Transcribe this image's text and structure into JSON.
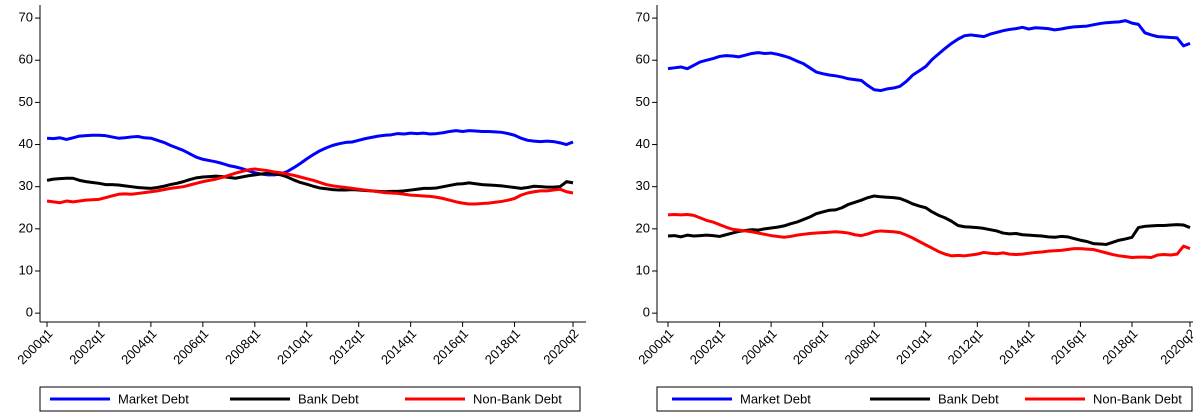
{
  "chart_data": [
    {
      "type": "line",
      "ylim": [
        -2.1,
        73.1
      ],
      "yticks": [
        0,
        10,
        20,
        30,
        40,
        50,
        60,
        70
      ],
      "legend": "bottom",
      "categories": [
        "2000q1",
        null,
        null,
        null,
        null,
        null,
        null,
        null,
        "2002q1",
        null,
        null,
        null,
        null,
        null,
        null,
        null,
        "2004q1",
        null,
        null,
        null,
        null,
        null,
        null,
        null,
        "2006q1",
        null,
        null,
        null,
        null,
        null,
        null,
        null,
        "2008q1",
        null,
        null,
        null,
        null,
        null,
        null,
        null,
        "2010q1",
        null,
        null,
        null,
        null,
        null,
        null,
        null,
        "2012q1",
        null,
        null,
        null,
        null,
        null,
        null,
        null,
        "2014q1",
        null,
        null,
        null,
        null,
        null,
        null,
        null,
        "2016q1",
        null,
        null,
        null,
        null,
        null,
        null,
        null,
        "2018q1",
        null,
        null,
        null,
        null,
        null,
        null,
        null,
        null,
        "2020q2"
      ],
      "series": [
        {
          "name": "Market Debt",
          "color": "#0000ff",
          "values": [
            41.5,
            41.4,
            41.6,
            41.2,
            41.6,
            42.0,
            42.1,
            42.2,
            42.2,
            42.1,
            41.8,
            41.5,
            41.6,
            41.8,
            41.9,
            41.6,
            41.5,
            41.0,
            40.5,
            39.8,
            39.2,
            38.6,
            37.8,
            37.0,
            36.5,
            36.2,
            35.9,
            35.5,
            35.0,
            34.7,
            34.3,
            33.8,
            33.3,
            33.0,
            32.8,
            32.8,
            33.0,
            33.6,
            34.5,
            35.5,
            36.6,
            37.6,
            38.5,
            39.2,
            39.8,
            40.2,
            40.5,
            40.6,
            41.0,
            41.4,
            41.7,
            42.0,
            42.2,
            42.3,
            42.6,
            42.5,
            42.7,
            42.6,
            42.7,
            42.5,
            42.6,
            42.8,
            43.1,
            43.3,
            43.1,
            43.3,
            43.2,
            43.1,
            43.1,
            43.0,
            42.9,
            42.6,
            42.2,
            41.5,
            41.0,
            40.8,
            40.7,
            40.8,
            40.7,
            40.4,
            40.0,
            40.6
          ]
        },
        {
          "name": "Bank Debt",
          "color": "#000000",
          "values": [
            31.5,
            31.8,
            31.9,
            32.0,
            32.0,
            31.5,
            31.2,
            31.0,
            30.8,
            30.5,
            30.5,
            30.4,
            30.2,
            30.0,
            29.8,
            29.7,
            29.6,
            29.8,
            30.1,
            30.5,
            30.8,
            31.2,
            31.7,
            32.1,
            32.3,
            32.4,
            32.5,
            32.4,
            32.2,
            32.0,
            32.3,
            32.6,
            32.8,
            33.0,
            33.2,
            33.1,
            32.8,
            32.3,
            31.6,
            31.0,
            30.6,
            30.1,
            29.7,
            29.5,
            29.3,
            29.2,
            29.2,
            29.3,
            29.2,
            29.1,
            29.0,
            28.9,
            28.8,
            28.9,
            28.9,
            29.0,
            29.2,
            29.4,
            29.6,
            29.6,
            29.7,
            30.0,
            30.3,
            30.6,
            30.7,
            30.9,
            30.7,
            30.5,
            30.4,
            30.3,
            30.2,
            30.0,
            29.8,
            29.6,
            29.8,
            30.1,
            30.0,
            29.9,
            29.9,
            30.0,
            31.2,
            30.9
          ]
        },
        {
          "name": "Non-Bank Debt",
          "color": "#ff0000",
          "values": [
            26.6,
            26.4,
            26.2,
            26.6,
            26.4,
            26.6,
            26.8,
            26.9,
            27.0,
            27.4,
            27.8,
            28.2,
            28.3,
            28.2,
            28.4,
            28.6,
            28.8,
            29.0,
            29.3,
            29.6,
            29.8,
            30.0,
            30.4,
            30.8,
            31.2,
            31.5,
            31.8,
            32.2,
            32.7,
            33.2,
            33.6,
            34.0,
            34.2,
            34.0,
            33.8,
            33.5,
            33.3,
            33.0,
            32.7,
            32.3,
            31.9,
            31.5,
            31.0,
            30.5,
            30.2,
            30.0,
            29.8,
            29.6,
            29.4,
            29.2,
            29.0,
            28.8,
            28.6,
            28.5,
            28.4,
            28.2,
            28.0,
            27.9,
            27.8,
            27.7,
            27.5,
            27.2,
            26.8,
            26.4,
            26.1,
            25.9,
            25.9,
            26.0,
            26.1,
            26.3,
            26.5,
            26.8,
            27.2,
            28.0,
            28.5,
            28.8,
            29.0,
            29.0,
            29.2,
            29.4,
            28.8,
            28.5
          ]
        }
      ]
    },
    {
      "type": "line",
      "ylim": [
        -2.1,
        73.1
      ],
      "yticks": [
        0,
        10,
        20,
        30,
        40,
        50,
        60,
        70
      ],
      "legend": "bottom",
      "categories": [
        "2000q1",
        null,
        null,
        null,
        null,
        null,
        null,
        null,
        "2002q1",
        null,
        null,
        null,
        null,
        null,
        null,
        null,
        "2004q1",
        null,
        null,
        null,
        null,
        null,
        null,
        null,
        "2006q1",
        null,
        null,
        null,
        null,
        null,
        null,
        null,
        "2008q1",
        null,
        null,
        null,
        null,
        null,
        null,
        null,
        "2010q1",
        null,
        null,
        null,
        null,
        null,
        null,
        null,
        "2012q1",
        null,
        null,
        null,
        null,
        null,
        null,
        null,
        "2014q1",
        null,
        null,
        null,
        null,
        null,
        null,
        null,
        "2016q1",
        null,
        null,
        null,
        null,
        null,
        null,
        null,
        "2018q1",
        null,
        null,
        null,
        null,
        null,
        null,
        null,
        null,
        "2020q2"
      ],
      "series": [
        {
          "name": "Market Debt",
          "color": "#0000ff",
          "values": [
            58.0,
            58.2,
            58.4,
            58.0,
            58.8,
            59.6,
            60.0,
            60.4,
            60.9,
            61.1,
            61.0,
            60.8,
            61.2,
            61.6,
            61.8,
            61.6,
            61.7,
            61.4,
            61.0,
            60.5,
            59.8,
            59.2,
            58.2,
            57.2,
            56.8,
            56.5,
            56.3,
            56.0,
            55.6,
            55.4,
            55.2,
            54.0,
            53.0,
            52.8,
            53.2,
            53.4,
            53.8,
            55.0,
            56.5,
            57.5,
            58.5,
            60.2,
            61.5,
            62.8,
            64.0,
            65.0,
            65.8,
            66.0,
            65.8,
            65.6,
            66.2,
            66.6,
            67.0,
            67.3,
            67.5,
            67.8,
            67.4,
            67.7,
            67.6,
            67.5,
            67.2,
            67.4,
            67.7,
            67.9,
            68.0,
            68.1,
            68.4,
            68.7,
            68.9,
            69.0,
            69.1,
            69.4,
            68.8,
            68.5,
            66.5,
            66.0,
            65.6,
            65.5,
            65.4,
            65.3,
            63.4,
            64.0
          ]
        },
        {
          "name": "Bank Debt",
          "color": "#000000",
          "values": [
            18.3,
            18.4,
            18.1,
            18.5,
            18.3,
            18.4,
            18.5,
            18.4,
            18.2,
            18.6,
            19.0,
            19.4,
            19.6,
            19.8,
            19.7,
            20.0,
            20.2,
            20.4,
            20.7,
            21.2,
            21.6,
            22.2,
            22.8,
            23.6,
            24.0,
            24.4,
            24.5,
            25.0,
            25.8,
            26.3,
            26.8,
            27.4,
            27.8,
            27.6,
            27.5,
            27.4,
            27.2,
            26.6,
            25.9,
            25.4,
            25.0,
            24.0,
            23.2,
            22.6,
            21.8,
            20.8,
            20.5,
            20.4,
            20.3,
            20.1,
            19.8,
            19.5,
            19.0,
            18.8,
            18.9,
            18.6,
            18.5,
            18.4,
            18.3,
            18.1,
            18.0,
            18.2,
            18.1,
            17.7,
            17.3,
            17.0,
            16.5,
            16.4,
            16.3,
            16.8,
            17.3,
            17.6,
            18.0,
            20.3,
            20.6,
            20.7,
            20.8,
            20.8,
            20.9,
            21.0,
            20.9,
            20.3
          ]
        },
        {
          "name": "Non-Bank Debt",
          "color": "#ff0000",
          "values": [
            23.3,
            23.4,
            23.3,
            23.4,
            23.2,
            22.6,
            22.0,
            21.6,
            21.0,
            20.4,
            19.9,
            19.7,
            19.5,
            19.3,
            19.0,
            18.7,
            18.4,
            18.2,
            18.0,
            18.2,
            18.5,
            18.7,
            18.9,
            19.0,
            19.1,
            19.2,
            19.3,
            19.2,
            19.0,
            18.6,
            18.4,
            18.8,
            19.3,
            19.5,
            19.4,
            19.3,
            19.1,
            18.5,
            17.8,
            17.0,
            16.2,
            15.4,
            14.6,
            14.0,
            13.6,
            13.7,
            13.6,
            13.8,
            14.0,
            14.4,
            14.2,
            14.1,
            14.3,
            14.0,
            13.9,
            14.0,
            14.2,
            14.4,
            14.5,
            14.7,
            14.8,
            14.9,
            15.1,
            15.3,
            15.3,
            15.2,
            15.1,
            14.7,
            14.3,
            13.9,
            13.6,
            13.4,
            13.2,
            13.3,
            13.3,
            13.2,
            13.8,
            13.9,
            13.8,
            14.0,
            15.9,
            15.3
          ]
        }
      ]
    }
  ]
}
